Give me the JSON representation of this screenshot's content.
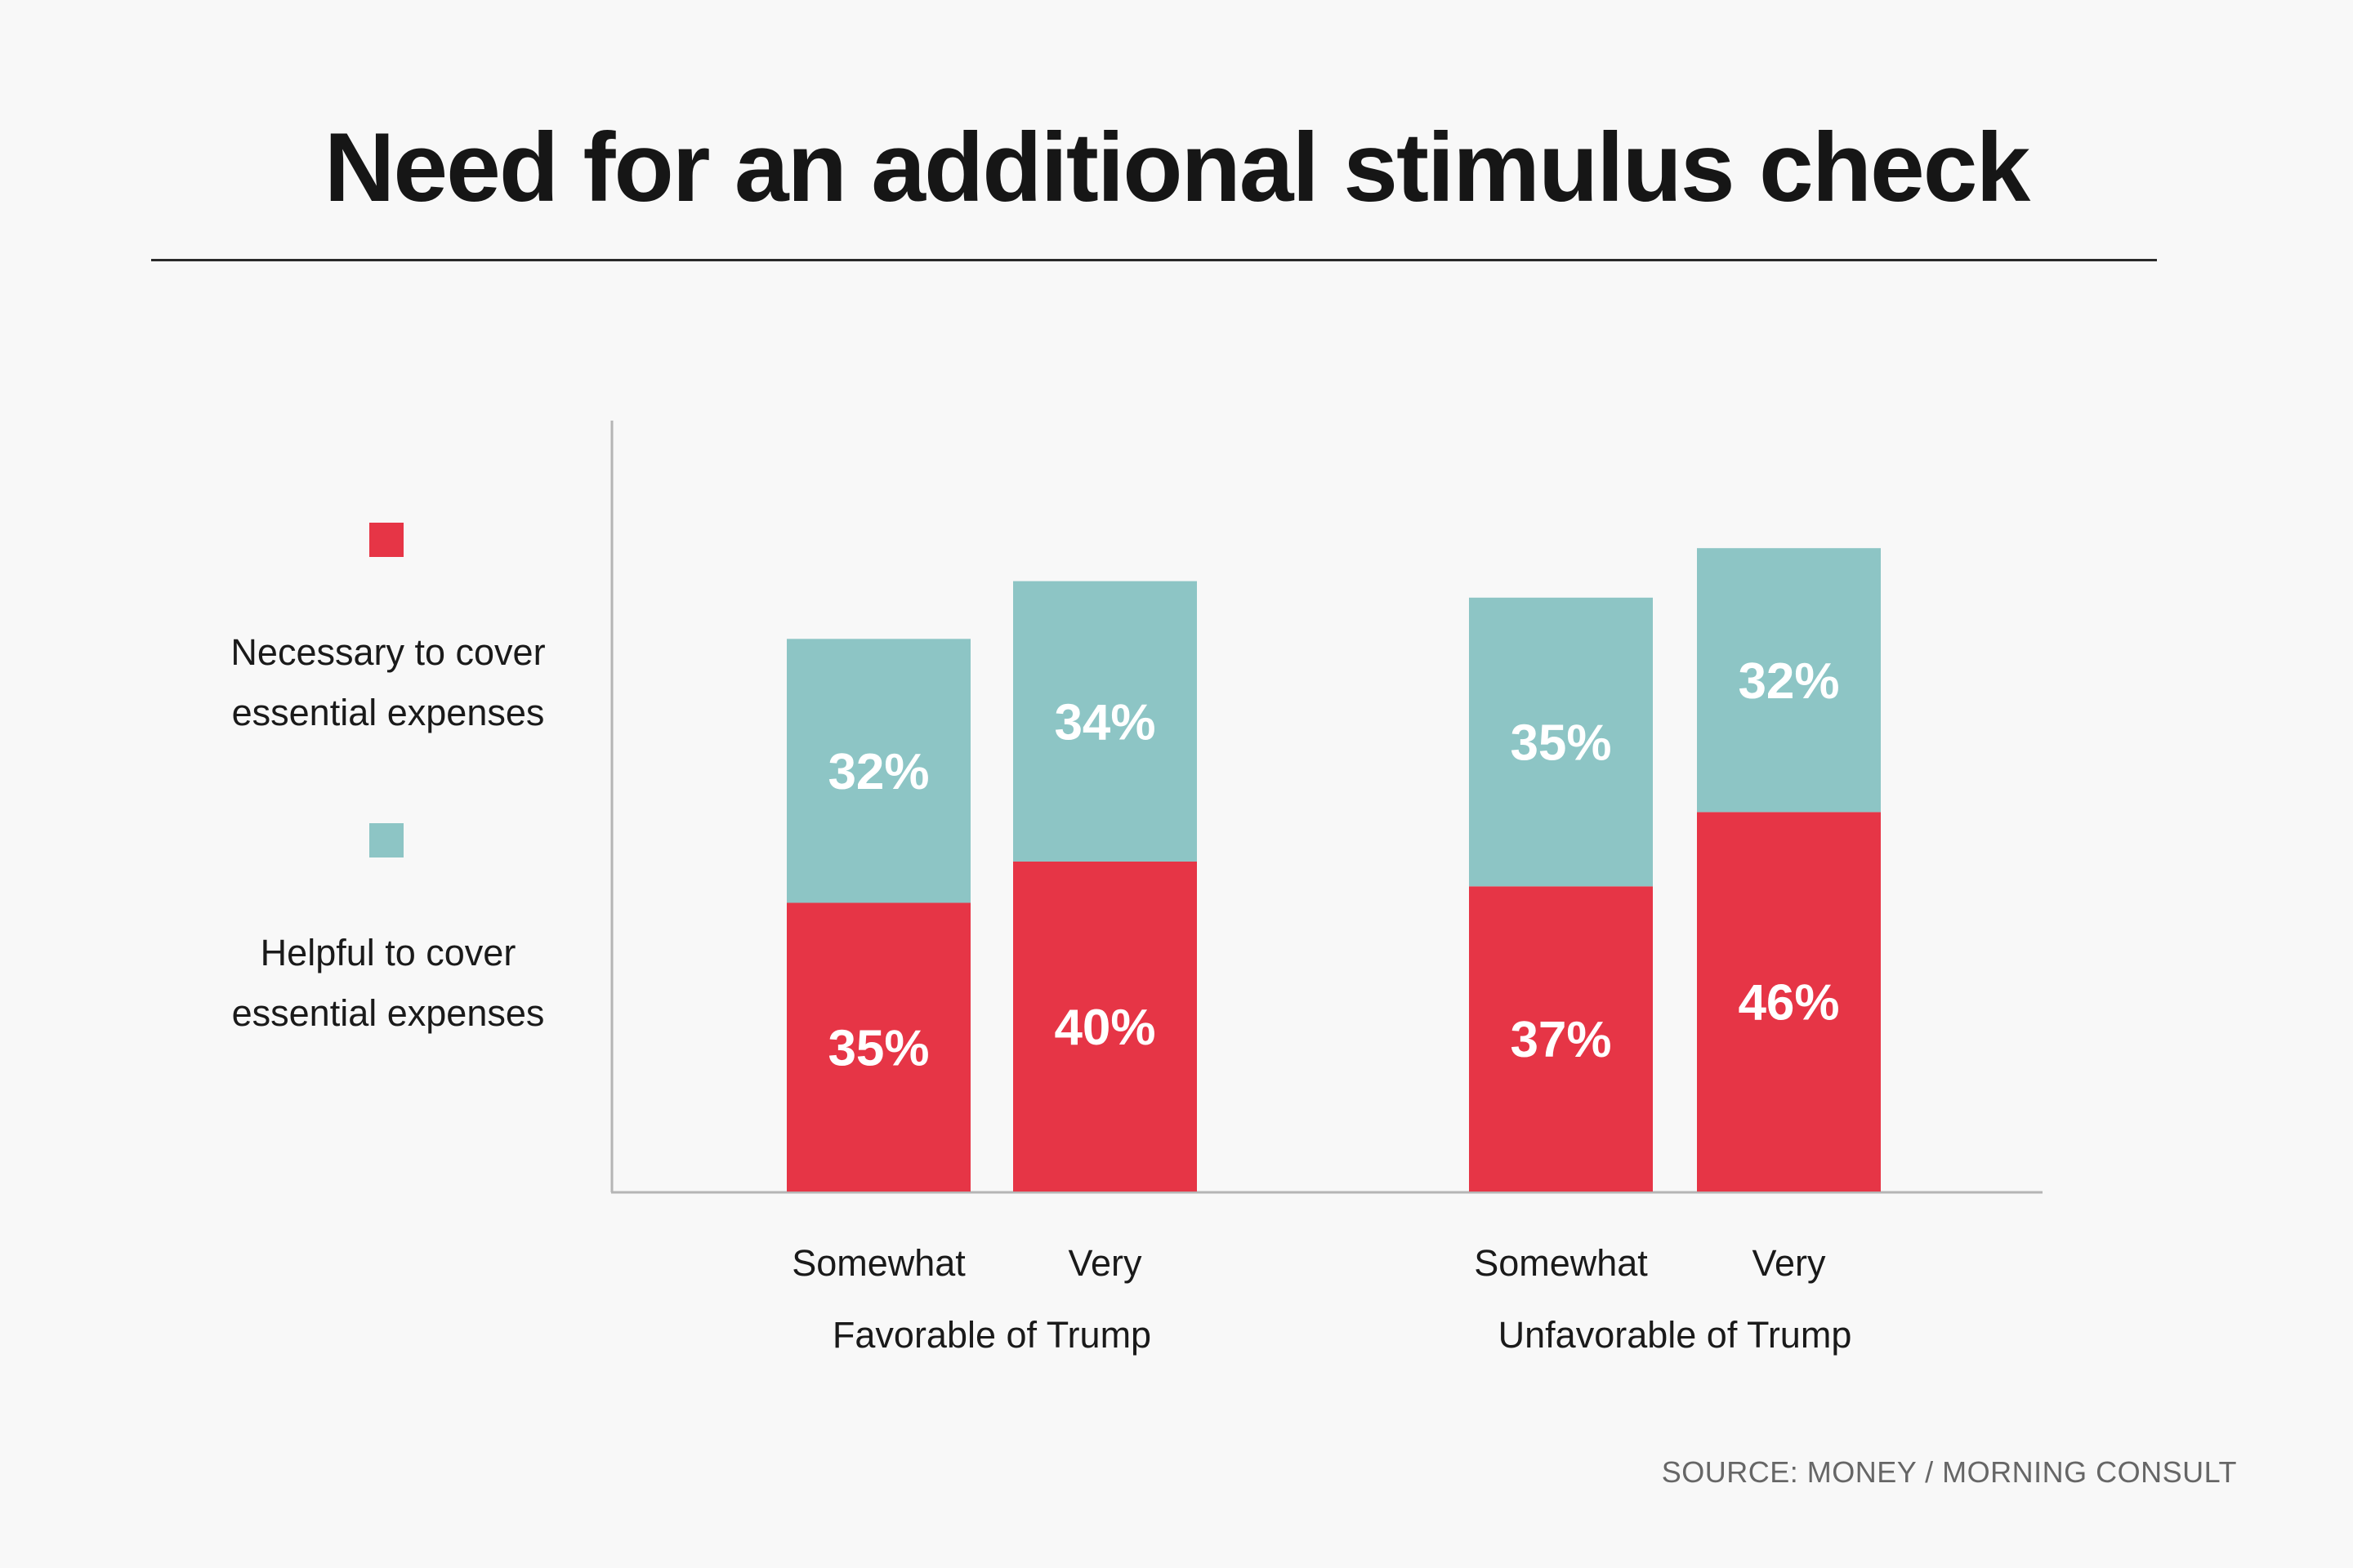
{
  "chart_data": {
    "type": "bar",
    "stacked": true,
    "title": "Need for an additional stimulus check",
    "xlabel": "",
    "ylabel": "",
    "ylim": [
      0,
      100
    ],
    "grid": false,
    "legend_position": "left",
    "groups": [
      {
        "label": "Favorable of Trump",
        "categories": [
          "Somewhat",
          "Very"
        ]
      },
      {
        "label": "Unfavorable of Trump",
        "categories": [
          "Somewhat",
          "Very"
        ]
      }
    ],
    "categories": [
      "Somewhat",
      "Very",
      "Somewhat",
      "Very"
    ],
    "series": [
      {
        "name": "Necessary to cover essential expenses",
        "color": "#e63546",
        "values": [
          35,
          40,
          37,
          46
        ]
      },
      {
        "name": "Helpful to cover essential expenses",
        "color": "#8dc5c5",
        "values": [
          32,
          34,
          35,
          32
        ]
      }
    ],
    "source": "SOURCE: MONEY / MORNING CONSULT"
  },
  "legend": {
    "items": [
      {
        "line1": "Necessary to cover",
        "line2": "essential expenses",
        "color": "#e63546"
      },
      {
        "line1": "Helpful to cover",
        "line2": "essential expenses",
        "color": "#8dc5c5"
      }
    ]
  }
}
